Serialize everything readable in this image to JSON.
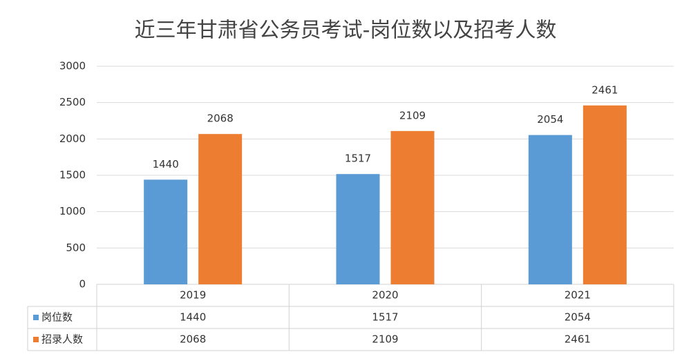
{
  "chart_data": {
    "type": "bar",
    "title": "近三年甘肃省公务员考试-岗位数以及招考人数",
    "categories": [
      "2019",
      "2020",
      "2021"
    ],
    "series": [
      {
        "name": "岗位数",
        "color": "#5b9bd5",
        "values": [
          1440,
          1517,
          2054
        ]
      },
      {
        "name": "招录人数",
        "color": "#ed7d31",
        "values": [
          2068,
          2109,
          2461
        ]
      }
    ],
    "ylim": [
      0,
      3000
    ],
    "yticks": [
      0,
      500,
      1000,
      1500,
      2000,
      2500,
      3000
    ],
    "grid": true
  }
}
